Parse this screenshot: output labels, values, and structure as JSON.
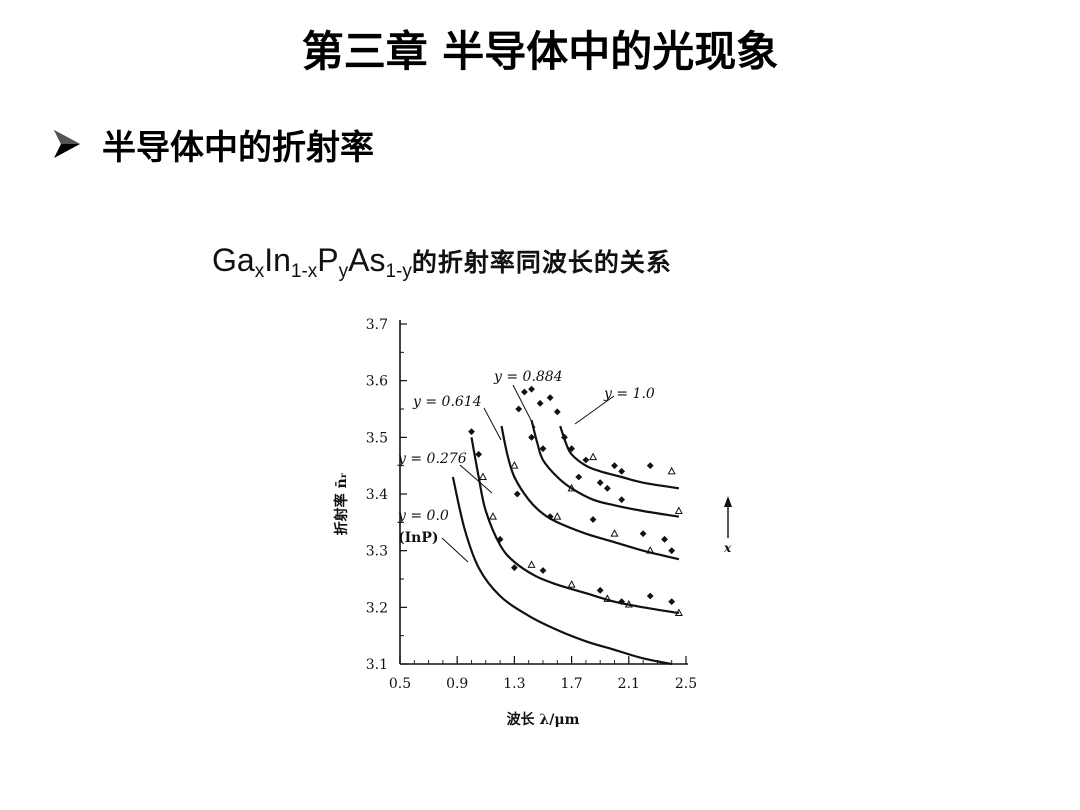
{
  "slide": {
    "title": "第三章 半导体中的光现象",
    "bullet": "半导体中的折射率"
  },
  "chart_title": {
    "ga": "Ga",
    "x": "x",
    "in": "In",
    "one_minus_x": "1-x",
    "p": "P",
    "y": "y",
    "as": "As",
    "one_minus_y": "1-y",
    "cn": "的折射率同波长的关系"
  },
  "chart_data": {
    "type": "line",
    "xlabel": "波长 λ/μm",
    "ylabel": "折射率 n̄ᵣ",
    "xlim": [
      0.5,
      2.5
    ],
    "ylim": [
      3.1,
      3.7
    ],
    "xticks": [
      0.5,
      0.9,
      1.3,
      1.7,
      2.1,
      2.5
    ],
    "yticks": [
      3.1,
      3.2,
      3.3,
      3.4,
      3.5,
      3.6,
      3.7
    ],
    "xtick_labels": [
      "0.5",
      "0.9",
      "1.3",
      "1.7",
      "2.1",
      "2.5"
    ],
    "ytick_labels": [
      "3.1",
      "3.2",
      "3.3",
      "3.4",
      "3.5",
      "3.6",
      "3.7"
    ],
    "arrow_label": "x",
    "series": [
      {
        "name": "y = 0.0",
        "sublabel": "(InP)",
        "x": [
          0.87,
          0.95,
          1.05,
          1.2,
          1.4,
          1.6,
          1.8,
          2.0,
          2.2,
          2.4
        ],
        "y": [
          3.43,
          3.34,
          3.27,
          3.22,
          3.185,
          3.16,
          3.14,
          3.125,
          3.11,
          3.1
        ]
      },
      {
        "name": "y = 0.276",
        "x": [
          1.0,
          1.05,
          1.1,
          1.2,
          1.3,
          1.45,
          1.6,
          1.8,
          2.0,
          2.2,
          2.45
        ],
        "y": [
          3.5,
          3.43,
          3.37,
          3.31,
          3.28,
          3.255,
          3.24,
          3.225,
          3.21,
          3.2,
          3.19
        ]
      },
      {
        "name": "y = 0.614",
        "x": [
          1.21,
          1.25,
          1.3,
          1.4,
          1.5,
          1.6,
          1.8,
          2.0,
          2.2,
          2.45
        ],
        "y": [
          3.52,
          3.47,
          3.43,
          3.39,
          3.365,
          3.35,
          3.33,
          3.315,
          3.3,
          3.285
        ]
      },
      {
        "name": "y = 0.884",
        "x": [
          1.42,
          1.46,
          1.5,
          1.6,
          1.7,
          1.85,
          2.0,
          2.2,
          2.45
        ],
        "y": [
          3.53,
          3.49,
          3.46,
          3.43,
          3.41,
          3.39,
          3.38,
          3.37,
          3.36
        ]
      },
      {
        "name": "y = 1.0",
        "x": [
          1.62,
          1.66,
          1.7,
          1.8,
          1.9,
          2.05,
          2.2,
          2.45
        ],
        "y": [
          3.52,
          3.49,
          3.47,
          3.45,
          3.44,
          3.43,
          3.42,
          3.41
        ]
      }
    ],
    "diamond_points": [
      {
        "x": 1.0,
        "y": 3.51
      },
      {
        "x": 1.05,
        "y": 3.47
      },
      {
        "x": 1.2,
        "y": 3.32
      },
      {
        "x": 1.3,
        "y": 3.27
      },
      {
        "x": 1.5,
        "y": 3.265
      },
      {
        "x": 1.9,
        "y": 3.23
      },
      {
        "x": 2.05,
        "y": 3.21
      },
      {
        "x": 2.25,
        "y": 3.22
      },
      {
        "x": 2.4,
        "y": 3.21
      },
      {
        "x": 1.37,
        "y": 3.58
      },
      {
        "x": 1.42,
        "y": 3.585
      },
      {
        "x": 1.33,
        "y": 3.55
      },
      {
        "x": 1.48,
        "y": 3.56
      },
      {
        "x": 1.55,
        "y": 3.57
      },
      {
        "x": 1.6,
        "y": 3.545
      },
      {
        "x": 1.42,
        "y": 3.5
      },
      {
        "x": 1.5,
        "y": 3.48
      },
      {
        "x": 1.32,
        "y": 3.4
      },
      {
        "x": 1.55,
        "y": 3.36
      },
      {
        "x": 1.75,
        "y": 3.43
      },
      {
        "x": 1.8,
        "y": 3.46
      },
      {
        "x": 1.9,
        "y": 3.42
      },
      {
        "x": 1.95,
        "y": 3.41
      },
      {
        "x": 2.05,
        "y": 3.39
      },
      {
        "x": 2.2,
        "y": 3.33
      },
      {
        "x": 2.35,
        "y": 3.32
      },
      {
        "x": 2.4,
        "y": 3.3
      },
      {
        "x": 1.65,
        "y": 3.5
      },
      {
        "x": 1.7,
        "y": 3.48
      },
      {
        "x": 2.0,
        "y": 3.45
      },
      {
        "x": 2.05,
        "y": 3.44
      },
      {
        "x": 2.25,
        "y": 3.45
      },
      {
        "x": 1.85,
        "y": 3.355
      }
    ],
    "triangle_points": [
      {
        "x": 1.08,
        "y": 3.43
      },
      {
        "x": 1.15,
        "y": 3.36
      },
      {
        "x": 1.3,
        "y": 3.45
      },
      {
        "x": 1.42,
        "y": 3.275
      },
      {
        "x": 1.7,
        "y": 3.24
      },
      {
        "x": 1.95,
        "y": 3.215
      },
      {
        "x": 2.1,
        "y": 3.205
      },
      {
        "x": 2.45,
        "y": 3.19
      },
      {
        "x": 1.6,
        "y": 3.36
      },
      {
        "x": 1.7,
        "y": 3.41
      },
      {
        "x": 1.85,
        "y": 3.465
      },
      {
        "x": 2.0,
        "y": 3.33
      },
      {
        "x": 2.25,
        "y": 3.3
      },
      {
        "x": 2.45,
        "y": 3.37
      },
      {
        "x": 2.4,
        "y": 3.44
      }
    ]
  }
}
